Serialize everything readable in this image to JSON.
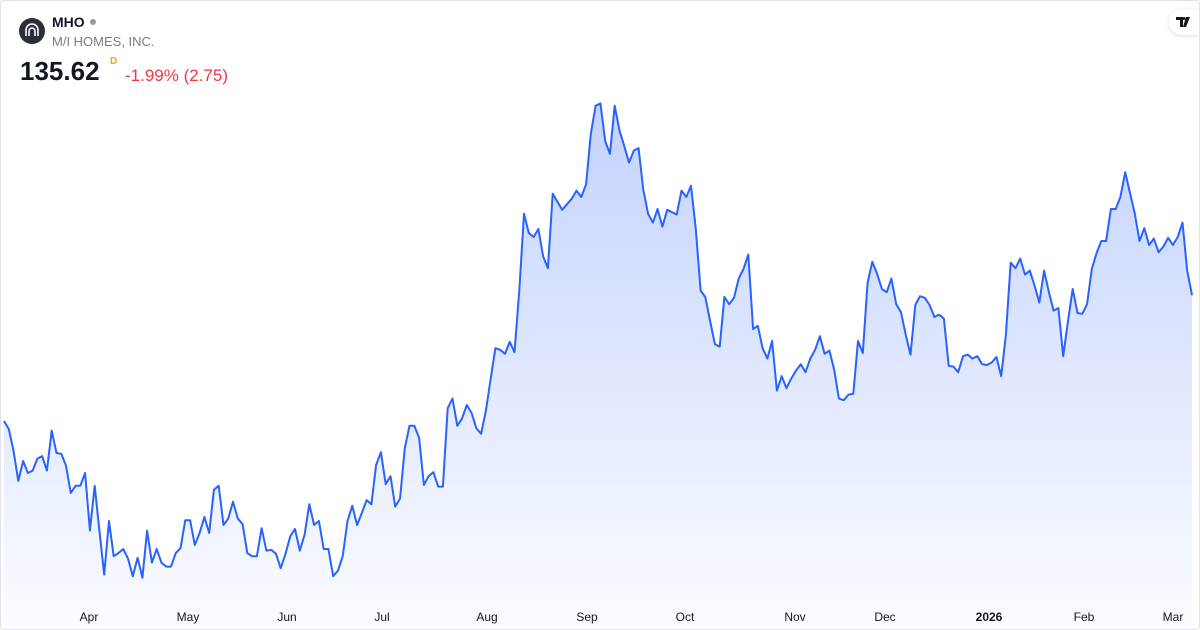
{
  "header": {
    "symbol": "MHO",
    "company": "M/I HOMES, INC.",
    "price": 135.62,
    "flag": "D",
    "change": "-1.99% (2.75)"
  },
  "chart_data": {
    "type": "area",
    "color": "#2962ff",
    "ylim": [
      93.65,
      172.4
    ],
    "xticks": [
      "Apr",
      "May",
      "Jun",
      "Jul",
      "Aug",
      "Sep",
      "Oct",
      "Nov",
      "Dec",
      "2026",
      "Feb",
      "Mar"
    ],
    "values": [
      119.9,
      118.9,
      116.2,
      112.4,
      114.9,
      113.4,
      113.7,
      115.2,
      115.5,
      113.7,
      118.7,
      115.9,
      115.8,
      114.3,
      110.9,
      111.8,
      111.8,
      113.4,
      106.2,
      111.8,
      106.2,
      100.7,
      107.4,
      103.0,
      103.4,
      103.9,
      102.7,
      100.5,
      102.8,
      100.3,
      106.2,
      102.2,
      103.9,
      102.2,
      101.7,
      101.7,
      103.4,
      104.0,
      107.5,
      107.5,
      104.4,
      105.9,
      107.9,
      105.9,
      111.3,
      111.8,
      106.9,
      107.7,
      109.8,
      107.7,
      107.0,
      103.4,
      103.0,
      103.0,
      106.5,
      103.7,
      103.8,
      103.3,
      101.5,
      103.3,
      105.5,
      106.4,
      103.7,
      105.7,
      109.5,
      106.9,
      107.4,
      103.9,
      103.9,
      100.5,
      101.2,
      103.0,
      107.4,
      109.3,
      106.9,
      108.4,
      110.0,
      109.5,
      114.4,
      116.0,
      112.0,
      113.0,
      109.2,
      110.2,
      116.5,
      119.3,
      119.3,
      117.8,
      111.9,
      113.0,
      113.5,
      111.7,
      111.7,
      121.5,
      122.7,
      119.3,
      120.2,
      121.9,
      120.9,
      119.0,
      118.3,
      121.2,
      125.2,
      129.0,
      128.8,
      128.3,
      129.8,
      128.5,
      136.2,
      145.8,
      143.4,
      142.9,
      143.9,
      140.5,
      139.0,
      148.3,
      147.3,
      146.3,
      147.0,
      147.7,
      148.7,
      147.9,
      149.5,
      155.8,
      159.3,
      159.6,
      154.9,
      153.3,
      159.3,
      156.2,
      154.3,
      152.2,
      153.7,
      154.0,
      148.8,
      145.8,
      144.7,
      146.4,
      144.2,
      146.3,
      146.0,
      145.7,
      148.7,
      147.9,
      149.3,
      143.9,
      136.2,
      135.4,
      132.4,
      129.5,
      129.2,
      135.4,
      134.5,
      135.3,
      137.7,
      138.9,
      140.7,
      131.4,
      131.8,
      129.0,
      127.7,
      129.9,
      123.7,
      125.5,
      124.0,
      125.2,
      126.2,
      127.0,
      126.0,
      127.7,
      128.8,
      130.5,
      128.3,
      128.7,
      126.3,
      122.7,
      122.5,
      123.2,
      123.3,
      129.9,
      128.4,
      137.2,
      139.8,
      138.3,
      136.4,
      136.0,
      137.7,
      134.5,
      133.5,
      130.7,
      128.2,
      134.4,
      135.5,
      135.3,
      134.4,
      132.9,
      133.2,
      132.7,
      126.8,
      126.7,
      126.0,
      128.0,
      128.2,
      127.7,
      128.0,
      127.0,
      126.9,
      127.2,
      127.9,
      125.5,
      130.7,
      139.7,
      139.0,
      140.2,
      138.2,
      138.7,
      136.8,
      134.7,
      138.7,
      136.0,
      133.7,
      134.0,
      128.0,
      132.4,
      136.4,
      133.4,
      133.3,
      134.5,
      138.9,
      140.9,
      142.4,
      142.4,
      146.4,
      146.4,
      147.9,
      151.0,
      148.4,
      145.9,
      142.4,
      144.0,
      141.9,
      142.7,
      141.0,
      141.7,
      142.8,
      141.9,
      142.9,
      144.7,
      138.7,
      135.62
    ]
  }
}
